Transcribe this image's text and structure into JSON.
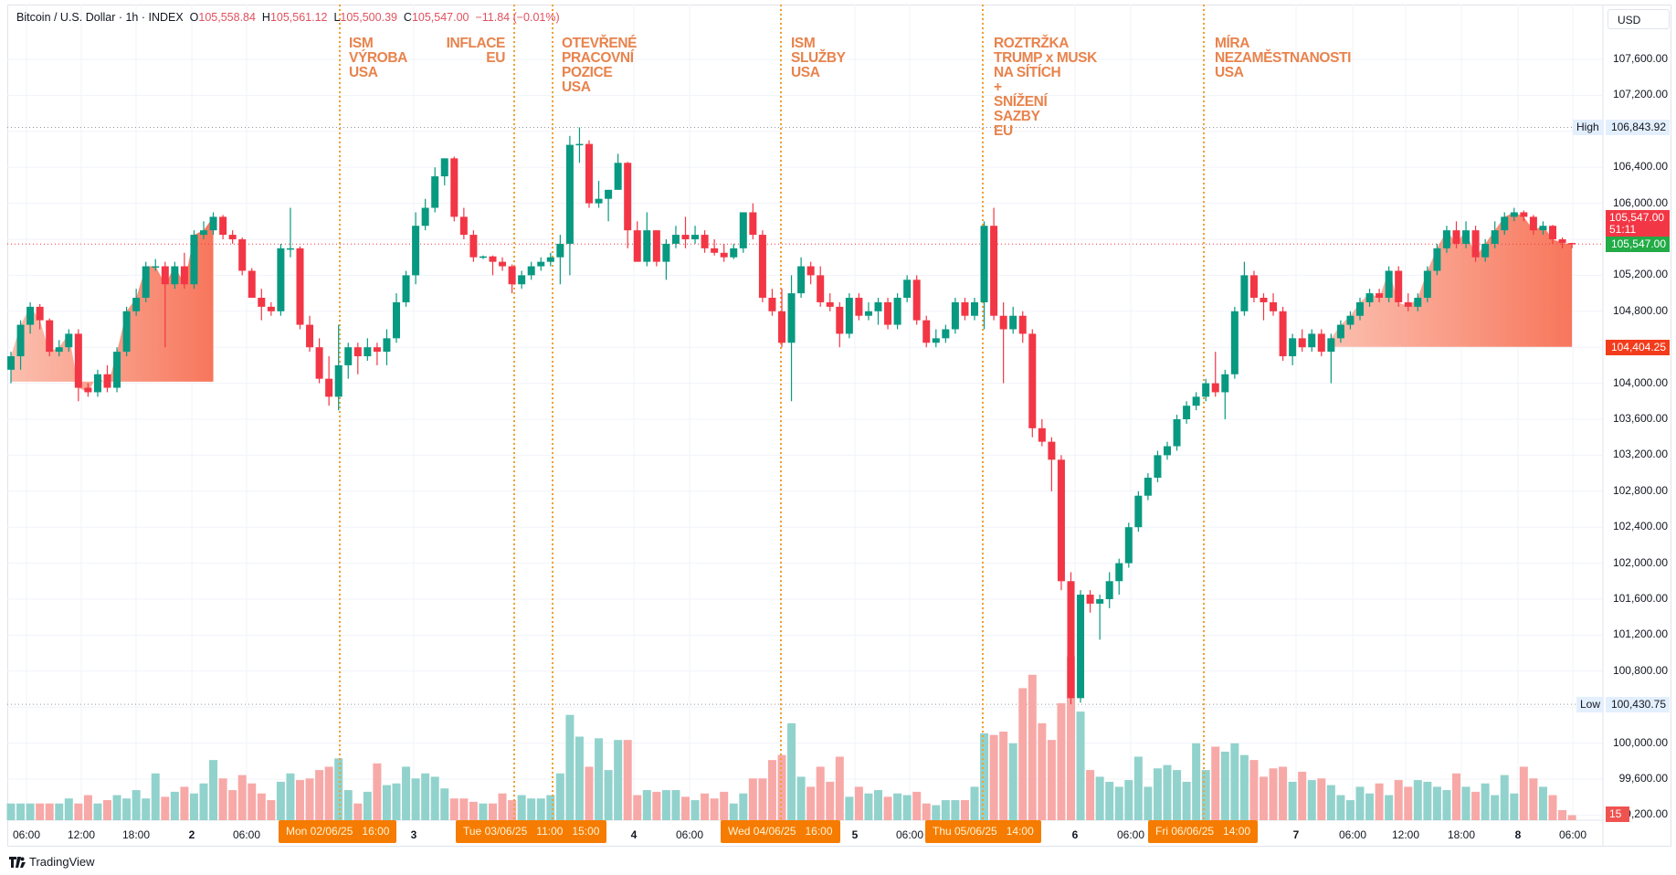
{
  "header": {
    "symbol": "Bitcoin / U.S. Dollar · 1h · INDEX",
    "o_label": "O",
    "o": "105,558.84",
    "h_label": "H",
    "h": "105,561.12",
    "l_label": "L",
    "l": "105,500.39",
    "c_label": "C",
    "c": "105,547.00",
    "change": "−11.84 (−0.01%)"
  },
  "currency": "USD",
  "events": [
    {
      "text": "ISM\nVÝROBA\nUSA"
    },
    {
      "text": "INFLACE\nEU"
    },
    {
      "text": "OTEVŘENÉ\nPRACOVNÍ\nPOZICE\nUSA"
    },
    {
      "text": "ISM\nSLUŽBY\nUSA"
    },
    {
      "text": "ROZTRŽKA\nTRUMP x MUSK\nNA SÍTÍCH\n+\nSNÍŽENÍ\nSAZBY\nEU"
    },
    {
      "text": "MÍRA\nNEZAMĚSTNANOSTI\nUSA"
    }
  ],
  "price_axis": [
    "107,600.00",
    "107,200.00",
    "106,400.00",
    "106,000.00",
    "105,200.00",
    "104,800.00",
    "104,000.00",
    "103,600.00",
    "103,200.00",
    "102,800.00",
    "102,400.00",
    "102,000.00",
    "101,600.00",
    "101,200.00",
    "100,800.00",
    "100,000.00",
    "99,600.00",
    "99,200.00"
  ],
  "badges": {
    "high_label": "High",
    "high": "106,843.92",
    "low_label": "Low",
    "low": "100,430.75",
    "last_price": "105,547.00",
    "countdown": "51:11",
    "close_price": "105,547.00",
    "range_level": "104,404.25",
    "volume": "15"
  },
  "time_axis": [
    "06:00",
    "12:00",
    "18:00",
    "2",
    "06:00",
    "3",
    "4",
    "06:00",
    "5",
    "06:00",
    "6",
    "06:00",
    "7",
    "06:00",
    "12:00",
    "18:00",
    "8",
    "06:00"
  ],
  "time_markers": [
    "Mon 02/06/25   16:00",
    "Tue 03/06/25   11:00   15:00",
    "Wed 04/06/25   16:00",
    "Thu 05/06/25   14:00",
    "Fri 06/06/25   14:00"
  ],
  "branding": "TradingView",
  "colors": {
    "up": "#089981",
    "down": "#f23645",
    "vol_up": "#92d2cc",
    "vol_down": "#f7a9a7",
    "event": "#f0a030",
    "area": "#f7765b"
  },
  "chart_data": {
    "type": "candlestick",
    "interval": "1h",
    "ylim": [
      99000,
      107800
    ],
    "high": 106843.92,
    "low": 100430.75,
    "range_level": 104404.25,
    "grid": true,
    "candles_ohlc": [
      [
        104150,
        104350,
        104000,
        104300
      ],
      [
        104300,
        104700,
        104150,
        104650
      ],
      [
        104650,
        104900,
        104550,
        104850
      ],
      [
        104850,
        104880,
        104600,
        104700
      ],
      [
        104700,
        104720,
        104300,
        104350
      ],
      [
        104350,
        104480,
        104300,
        104400
      ],
      [
        104400,
        104600,
        104350,
        104550
      ],
      [
        104550,
        104600,
        103800,
        103950
      ],
      [
        103950,
        104000,
        103850,
        103900
      ],
      [
        103900,
        104150,
        103850,
        104100
      ],
      [
        104100,
        104200,
        103900,
        103950
      ],
      [
        103950,
        104400,
        103900,
        104350
      ],
      [
        104350,
        104850,
        104300,
        104800
      ],
      [
        104800,
        105050,
        104750,
        104950
      ],
      [
        104950,
        105350,
        104900,
        105300
      ],
      [
        105300,
        105380,
        105250,
        105300
      ],
      [
        105300,
        105350,
        104400,
        105100
      ],
      [
        105100,
        105350,
        105050,
        105300
      ],
      [
        105300,
        105450,
        105050,
        105100
      ],
      [
        105100,
        105700,
        105050,
        105650
      ],
      [
        105650,
        105800,
        105600,
        105700
      ],
      [
        105700,
        105900,
        105650,
        105850
      ],
      [
        105850,
        105870,
        105600,
        105650
      ],
      [
        105650,
        105700,
        105550,
        105600
      ],
      [
        105600,
        105620,
        105200,
        105250
      ],
      [
        105250,
        105280,
        104950,
        104950
      ],
      [
        104950,
        105050,
        104700,
        104850
      ],
      [
        104850,
        104900,
        104750,
        104800
      ],
      [
        104800,
        105550,
        104750,
        105500
      ],
      [
        105500,
        105950,
        105400,
        105500
      ],
      [
        105500,
        105520,
        104600,
        104650
      ],
      [
        104650,
        104750,
        104350,
        104400
      ],
      [
        104400,
        104500,
        104000,
        104050
      ],
      [
        104050,
        104300,
        103750,
        103850
      ],
      [
        103850,
        104650,
        103700,
        104200
      ],
      [
        104200,
        104450,
        104050,
        104400
      ],
      [
        104400,
        104450,
        104100,
        104300
      ],
      [
        104300,
        104500,
        104250,
        104400
      ],
      [
        104400,
        104450,
        104200,
        104350
      ],
      [
        104350,
        104600,
        104200,
        104500
      ],
      [
        104500,
        105000,
        104450,
        104900
      ],
      [
        104900,
        105250,
        104850,
        105200
      ],
      [
        105200,
        105900,
        105100,
        105750
      ],
      [
        105750,
        106050,
        105700,
        105950
      ],
      [
        105950,
        106400,
        105900,
        106300
      ],
      [
        106300,
        106500,
        106200,
        106500
      ],
      [
        106500,
        106520,
        105800,
        105850
      ],
      [
        105850,
        105950,
        105600,
        105650
      ],
      [
        105650,
        105700,
        105350,
        105400
      ],
      [
        105400,
        105420,
        105380,
        105410
      ],
      [
        105410,
        105420,
        105200,
        105350
      ],
      [
        105350,
        105400,
        105250,
        105300
      ],
      [
        105300,
        105320,
        105000,
        105100
      ],
      [
        105100,
        105250,
        105050,
        105200
      ],
      [
        105200,
        105350,
        105150,
        105300
      ],
      [
        105300,
        105400,
        105250,
        105350
      ],
      [
        105350,
        105450,
        105300,
        105400
      ],
      [
        105400,
        105650,
        105100,
        105550
      ],
      [
        105550,
        106750,
        105200,
        106650
      ],
      [
        106650,
        106843.92,
        106450,
        106660
      ],
      [
        106660,
        106700,
        105950,
        106000
      ],
      [
        106000,
        106250,
        105950,
        106050
      ],
      [
        106050,
        106150,
        105800,
        106150
      ],
      [
        106150,
        106550,
        106150,
        106450
      ],
      [
        106450,
        106460,
        105500,
        105700
      ],
      [
        105700,
        105800,
        105350,
        105350
      ],
      [
        105350,
        105900,
        105300,
        105700
      ],
      [
        105700,
        105700,
        105300,
        105350
      ],
      [
        105350,
        105600,
        105150,
        105550
      ],
      [
        105550,
        105750,
        105500,
        105650
      ],
      [
        105650,
        105850,
        105500,
        105600
      ],
      [
        105600,
        105750,
        105550,
        105650
      ],
      [
        105650,
        105700,
        105450,
        105500
      ],
      [
        105500,
        105600,
        105420,
        105450
      ],
      [
        105450,
        105550,
        105350,
        105400
      ],
      [
        105400,
        105550,
        105380,
        105500
      ],
      [
        105500,
        105900,
        105450,
        105900
      ],
      [
        105900,
        106000,
        105600,
        105650
      ],
      [
        105650,
        105700,
        104900,
        104950
      ],
      [
        104950,
        105050,
        104750,
        104800
      ],
      [
        104800,
        105050,
        104400,
        104450
      ],
      [
        104450,
        105200,
        103800,
        105000
      ],
      [
        105000,
        105400,
        104950,
        105300
      ],
      [
        105300,
        105350,
        105100,
        105200
      ],
      [
        105200,
        105300,
        104850,
        104900
      ],
      [
        104900,
        105000,
        104800,
        104850
      ],
      [
        104850,
        104900,
        104400,
        104550
      ],
      [
        104550,
        105000,
        104500,
        104950
      ],
      [
        104950,
        105000,
        104700,
        104750
      ],
      [
        104750,
        104900,
        104700,
        104800
      ],
      [
        104800,
        104950,
        104650,
        104900
      ],
      [
        104900,
        104950,
        104600,
        104650
      ],
      [
        104650,
        105000,
        104600,
        104950
      ],
      [
        104950,
        105200,
        104900,
        105150
      ],
      [
        105150,
        105200,
        104650,
        104700
      ],
      [
        104700,
        104750,
        104400,
        104450
      ],
      [
        104450,
        104600,
        104400,
        104500
      ],
      [
        104500,
        104650,
        104450,
        104600
      ],
      [
        104600,
        104950,
        104550,
        104900
      ],
      [
        104900,
        104950,
        104700,
        104750
      ],
      [
        104750,
        104950,
        104700,
        104900
      ],
      [
        104900,
        105800,
        104600,
        105750
      ],
      [
        105750,
        105950,
        104700,
        104750
      ],
      [
        104750,
        104900,
        104000,
        104600
      ],
      [
        104600,
        104850,
        104550,
        104750
      ],
      [
        104750,
        104800,
        104450,
        104550
      ],
      [
        104550,
        104600,
        103400,
        103500
      ],
      [
        103500,
        103600,
        103300,
        103350
      ],
      [
        103350,
        103400,
        102800,
        103150
      ],
      [
        103150,
        103200,
        101700,
        101800
      ],
      [
        101800,
        101900,
        100430.75,
        100500
      ],
      [
        100500,
        101700,
        100450,
        101650
      ],
      [
        101650,
        101700,
        101450,
        101550
      ],
      [
        101550,
        101650,
        101150,
        101600
      ],
      [
        101600,
        101900,
        101500,
        101800
      ],
      [
        101800,
        102050,
        101650,
        102000
      ],
      [
        102000,
        102450,
        101950,
        102400
      ],
      [
        102400,
        102800,
        102350,
        102750
      ],
      [
        102750,
        103000,
        102700,
        102950
      ],
      [
        102950,
        103250,
        102900,
        103200
      ],
      [
        103200,
        103350,
        103150,
        103300
      ],
      [
        103300,
        103650,
        103250,
        103600
      ],
      [
        103600,
        103800,
        103550,
        103750
      ],
      [
        103750,
        103900,
        103700,
        103850
      ],
      [
        103850,
        104050,
        103800,
        104000
      ],
      [
        104000,
        104350,
        103850,
        103900
      ],
      [
        103900,
        104150,
        103600,
        104100
      ],
      [
        104100,
        104850,
        104050,
        104800
      ],
      [
        104800,
        105350,
        104750,
        105200
      ],
      [
        105200,
        105250,
        104900,
        104950
      ],
      [
        104950,
        105000,
        104700,
        104900
      ],
      [
        104900,
        105000,
        104750,
        104800
      ],
      [
        104800,
        104850,
        104250,
        104300
      ],
      [
        104300,
        104550,
        104200,
        104500
      ],
      [
        104500,
        104600,
        104350,
        104400
      ],
      [
        104400,
        104600,
        104350,
        104550
      ],
      [
        104550,
        104600,
        104300,
        104350
      ],
      [
        104350,
        104550,
        104000,
        104500
      ],
      [
        104500,
        104700,
        104450,
        104650
      ],
      [
        104650,
        104800,
        104600,
        104750
      ],
      [
        104750,
        104950,
        104700,
        104900
      ],
      [
        104900,
        105050,
        104850,
        105000
      ],
      [
        105000,
        105050,
        104900,
        104950
      ],
      [
        104950,
        105300,
        104900,
        105250
      ],
      [
        105250,
        105300,
        104850,
        104900
      ],
      [
        104900,
        105000,
        104800,
        104850
      ],
      [
        104850,
        105000,
        104800,
        104950
      ],
      [
        104950,
        105300,
        104900,
        105250
      ],
      [
        105250,
        105550,
        105200,
        105500
      ],
      [
        105500,
        105750,
        105450,
        105700
      ],
      [
        105700,
        105800,
        105500,
        105550
      ],
      [
        105550,
        105800,
        105500,
        105700
      ],
      [
        105700,
        105750,
        105350,
        105400
      ],
      [
        105400,
        105600,
        105350,
        105550
      ],
      [
        105550,
        105800,
        105500,
        105700
      ],
      [
        105700,
        105900,
        105650,
        105850
      ],
      [
        105850,
        105950,
        105800,
        105900
      ],
      [
        105900,
        105920,
        105800,
        105850
      ],
      [
        105850,
        105870,
        105650,
        105700
      ],
      [
        105700,
        105800,
        105650,
        105750
      ],
      [
        105750,
        105760,
        105550,
        105600
      ],
      [
        105600,
        105620,
        105500,
        105560
      ],
      [
        105558.84,
        105561.12,
        105500.39,
        105547.0
      ]
    ],
    "volumes_relative": [
      1,
      1,
      1,
      1,
      1,
      1,
      1.3,
      1,
      1.5,
      1,
      1.2,
      1.5,
      1.3,
      1.8,
      1.3,
      2.8,
      1.4,
      1.7,
      2,
      1.6,
      2.2,
      3.6,
      2.5,
      1.8,
      2.7,
      2.2,
      1.6,
      1.2,
      2.3,
      2.8,
      2.4,
      2.5,
      3,
      3.2,
      3.7,
      1.8,
      1,
      1.7,
      3.4,
      2.1,
      2.2,
      3.2,
      2.5,
      2.8,
      2.6,
      1.9,
      1.3,
      1.3,
      1.1,
      1,
      1,
      1.6,
      1.2,
      1.5,
      1.3,
      1.3,
      1.5,
      2.8,
      6.3,
      5,
      3.2,
      4.9,
      3,
      4.8,
      4.8,
      1.5,
      1.8,
      1.7,
      1.8,
      1.8,
      1.4,
      1.2,
      1.6,
      1.3,
      1.7,
      1,
      1.6,
      2.5,
      2.5,
      3.6,
      3.9,
      5.8,
      2.6,
      2,
      3.2,
      2.3,
      3.8,
      1.4,
      2,
      1.6,
      1.8,
      1.4,
      1.6,
      1.5,
      1.7,
      1,
      0.9,
      1.2,
      1.2,
      1.2,
      2,
      5.2,
      5.1,
      5.3,
      4.6,
      7.9,
      8.7,
      5.8,
      4.8,
      7,
      9.8,
      6.5,
      3,
      2.6,
      2.3,
      2,
      2.4,
      3.8,
      2,
      3.1,
      3.3,
      3,
      2.3,
      4.6,
      3,
      4.4,
      4.1,
      4.6,
      3.9,
      3.6,
      2.6,
      3.1,
      3.2,
      2.3,
      2.9,
      2.4,
      2.5,
      2.1,
      1.5,
      1.2,
      2,
      1.6,
      2.2,
      1.5,
      2.4,
      2,
      2.4,
      2.3,
      2,
      1.8,
      2.8,
      2,
      1.7,
      2.2,
      1.5,
      2.7,
      1.6,
      3.2,
      2.5,
      2,
      1.5,
      0.6,
      0.3
    ]
  }
}
